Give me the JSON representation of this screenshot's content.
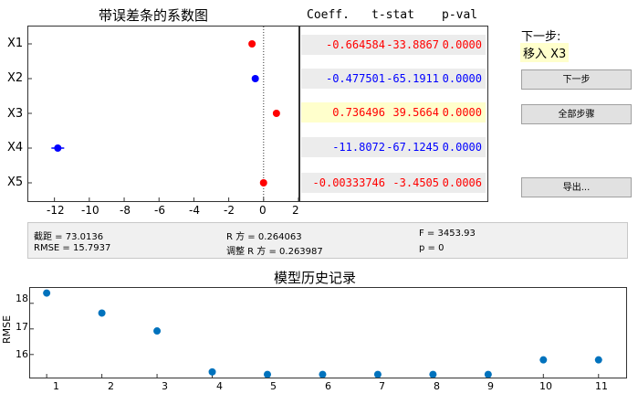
{
  "coef_plot": {
    "title": "带误差条的系数图",
    "predictors": [
      "X1",
      "X2",
      "X3",
      "X4",
      "X5"
    ],
    "x_ticks": [
      "-12",
      "-10",
      "-8",
      "-6",
      "-4",
      "-2",
      "0",
      "2"
    ]
  },
  "table": {
    "headers": [
      "Coeff.",
      "t-stat",
      "p-val"
    ],
    "rows": [
      {
        "coeff": "-0.664584",
        "tstat": "-33.8867",
        "pval": "0.0000",
        "color": "#ff0000",
        "highlight": false
      },
      {
        "coeff": "-0.477501",
        "tstat": "-65.1911",
        "pval": "0.0000",
        "color": "#0000ff",
        "highlight": false
      },
      {
        "coeff": "0.736496",
        "tstat": "39.5664",
        "pval": "0.0000",
        "color": "#ff0000",
        "highlight": true
      },
      {
        "coeff": "-11.8072",
        "tstat": "-67.1245",
        "pval": "0.0000",
        "color": "#0000ff",
        "highlight": false
      },
      {
        "coeff": "-0.00333746",
        "tstat": "-3.4505",
        "pval": "0.0006",
        "color": "#ff0000",
        "highlight": false
      }
    ]
  },
  "next_step": {
    "label": "下一步:",
    "action": "移入 X3",
    "next_button": "下一步",
    "all_steps_button": "全部步骤",
    "export_button": "导出..."
  },
  "stats": {
    "intercept": "截距 = 73.0136",
    "rmse": "RMSE = 15.7937",
    "r2": "R 方 = 0.264063",
    "adj_r2": "调整 R 方 = 0.263987",
    "f": "F = 3453.93",
    "p": "p = 0"
  },
  "history": {
    "title": "模型历史记录",
    "ylabel": "RMSE",
    "y_ticks": [
      "16",
      "17",
      "18"
    ],
    "x_ticks": [
      "1",
      "2",
      "3",
      "4",
      "5",
      "6",
      "7",
      "8",
      "9",
      "10",
      "11"
    ]
  },
  "colors": {
    "in_model": "#0000ff",
    "out_model": "#ff0000",
    "highlight": "#ffffcc",
    "history_marker": "#0072bd"
  },
  "chart_data": [
    {
      "type": "scatter",
      "title": "带误差条的系数图",
      "categories": [
        "X1",
        "X2",
        "X3",
        "X4",
        "X5"
      ],
      "values": [
        -0.664584,
        -0.477501,
        0.736496,
        -11.8072,
        -0.00333746
      ],
      "in_model": [
        false,
        true,
        false,
        true,
        false
      ],
      "xlim": [
        -13.5,
        2
      ]
    },
    {
      "type": "scatter",
      "title": "模型历史记录",
      "xlabel": "",
      "ylabel": "RMSE",
      "x": [
        1,
        2,
        3,
        4,
        5,
        6,
        7,
        8,
        9,
        10,
        11
      ],
      "values": [
        18.4,
        17.62,
        16.92,
        15.32,
        15.22,
        15.22,
        15.22,
        15.22,
        15.22,
        15.79,
        15.79
      ],
      "ylim": [
        15.1,
        18.6
      ],
      "xlim": [
        0.7,
        11.5
      ]
    }
  ]
}
